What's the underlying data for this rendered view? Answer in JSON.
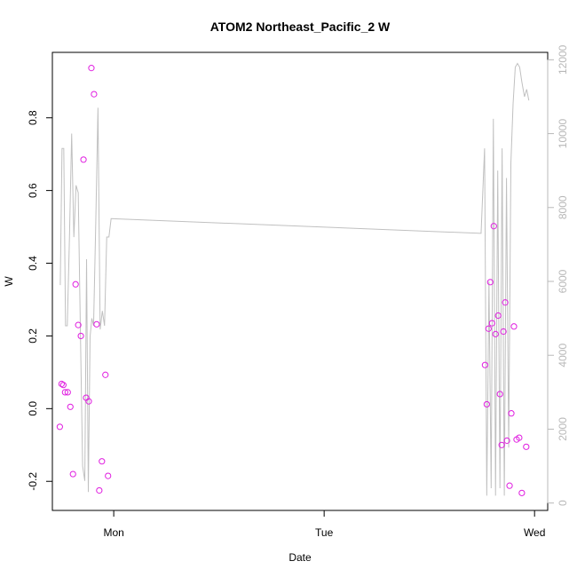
{
  "chart_data": {
    "type": "scatter",
    "title": "ATOM2 Northeast_Pacific_2 W",
    "xlabel": "Date",
    "ylabel": "W",
    "x_ticks": [
      {
        "label": "Mon",
        "t": 0
      },
      {
        "label": "Tue",
        "t": 24
      },
      {
        "label": "Wed",
        "t": 48
      }
    ],
    "xlim": [
      -7.0,
      49.5
    ],
    "ylim": [
      -0.28,
      0.98
    ],
    "y_ticks": [
      -0.2,
      0.0,
      0.2,
      0.4,
      0.6,
      0.8
    ],
    "y2lim": [
      -200,
      12200
    ],
    "y2_ticks": [
      0,
      2000,
      4000,
      6000,
      8000,
      10000,
      12000
    ],
    "colors": {
      "points": "#e01ee0",
      "line": "#c0c0c0",
      "right_axis": "#b8b8b8"
    },
    "series": [
      {
        "axis": "left",
        "style": "points",
        "x": [
          -6.15,
          -5.95,
          -5.75,
          -5.55,
          -5.25,
          -4.95,
          -4.65,
          -4.35,
          -4.05,
          -3.75,
          -3.45,
          -3.15,
          -2.85,
          -2.55,
          -2.25,
          -1.95,
          -1.65,
          -1.35,
          -0.95,
          -0.65,
          42.35,
          42.55,
          42.75,
          42.95,
          43.15,
          43.35,
          43.55,
          43.85,
          44.05,
          44.25,
          44.45,
          44.65,
          44.85,
          45.15,
          45.35,
          45.65,
          45.95,
          46.25,
          46.55,
          47.05
        ],
        "y": [
          -0.05,
          0.068,
          0.065,
          0.045,
          0.045,
          0.005,
          -0.18,
          0.342,
          0.23,
          0.2,
          0.685,
          0.03,
          0.02,
          0.937,
          0.865,
          0.232,
          -0.225,
          -0.145,
          0.093,
          -0.185,
          0.12,
          0.012,
          0.22,
          0.348,
          0.235,
          0.502,
          0.205,
          0.256,
          0.04,
          -0.1,
          0.212,
          0.292,
          -0.088,
          -0.212,
          -0.013,
          0.226,
          -0.085,
          -0.08,
          -0.232,
          -0.105
        ]
      },
      {
        "axis": "right",
        "style": "line",
        "x": [
          -6.1,
          -5.9,
          -5.7,
          -5.5,
          -5.3,
          -5.05,
          -4.8,
          -4.55,
          -4.3,
          -4.05,
          -3.8,
          -3.55,
          -3.3,
          -3.1,
          -2.9,
          -2.7,
          -2.5,
          -2.3,
          -2.05,
          -1.8,
          -1.55,
          -1.3,
          -1.05,
          -0.8,
          -0.55,
          -0.3,
          41.9,
          42.3,
          42.55,
          42.8,
          43.05,
          43.3,
          43.55,
          43.8,
          44.05,
          44.3,
          44.55,
          44.8,
          45.05,
          45.3,
          45.55,
          45.8,
          46.05,
          46.3,
          46.55,
          46.85,
          47.1,
          47.35
        ],
        "y": [
          5900,
          9600,
          9600,
          4800,
          4800,
          7200,
          10000,
          7200,
          8600,
          8400,
          4600,
          1000,
          600,
          6600,
          300,
          4500,
          5000,
          4800,
          7600,
          10700,
          4700,
          5200,
          4800,
          7200,
          7200,
          7700,
          7300,
          9600,
          200,
          6000,
          400,
          10400,
          200,
          9000,
          400,
          9600,
          200,
          8800,
          1500,
          9200,
          10800,
          11800,
          11900,
          11800,
          11400,
          11000,
          11200,
          10900
        ]
      }
    ]
  }
}
